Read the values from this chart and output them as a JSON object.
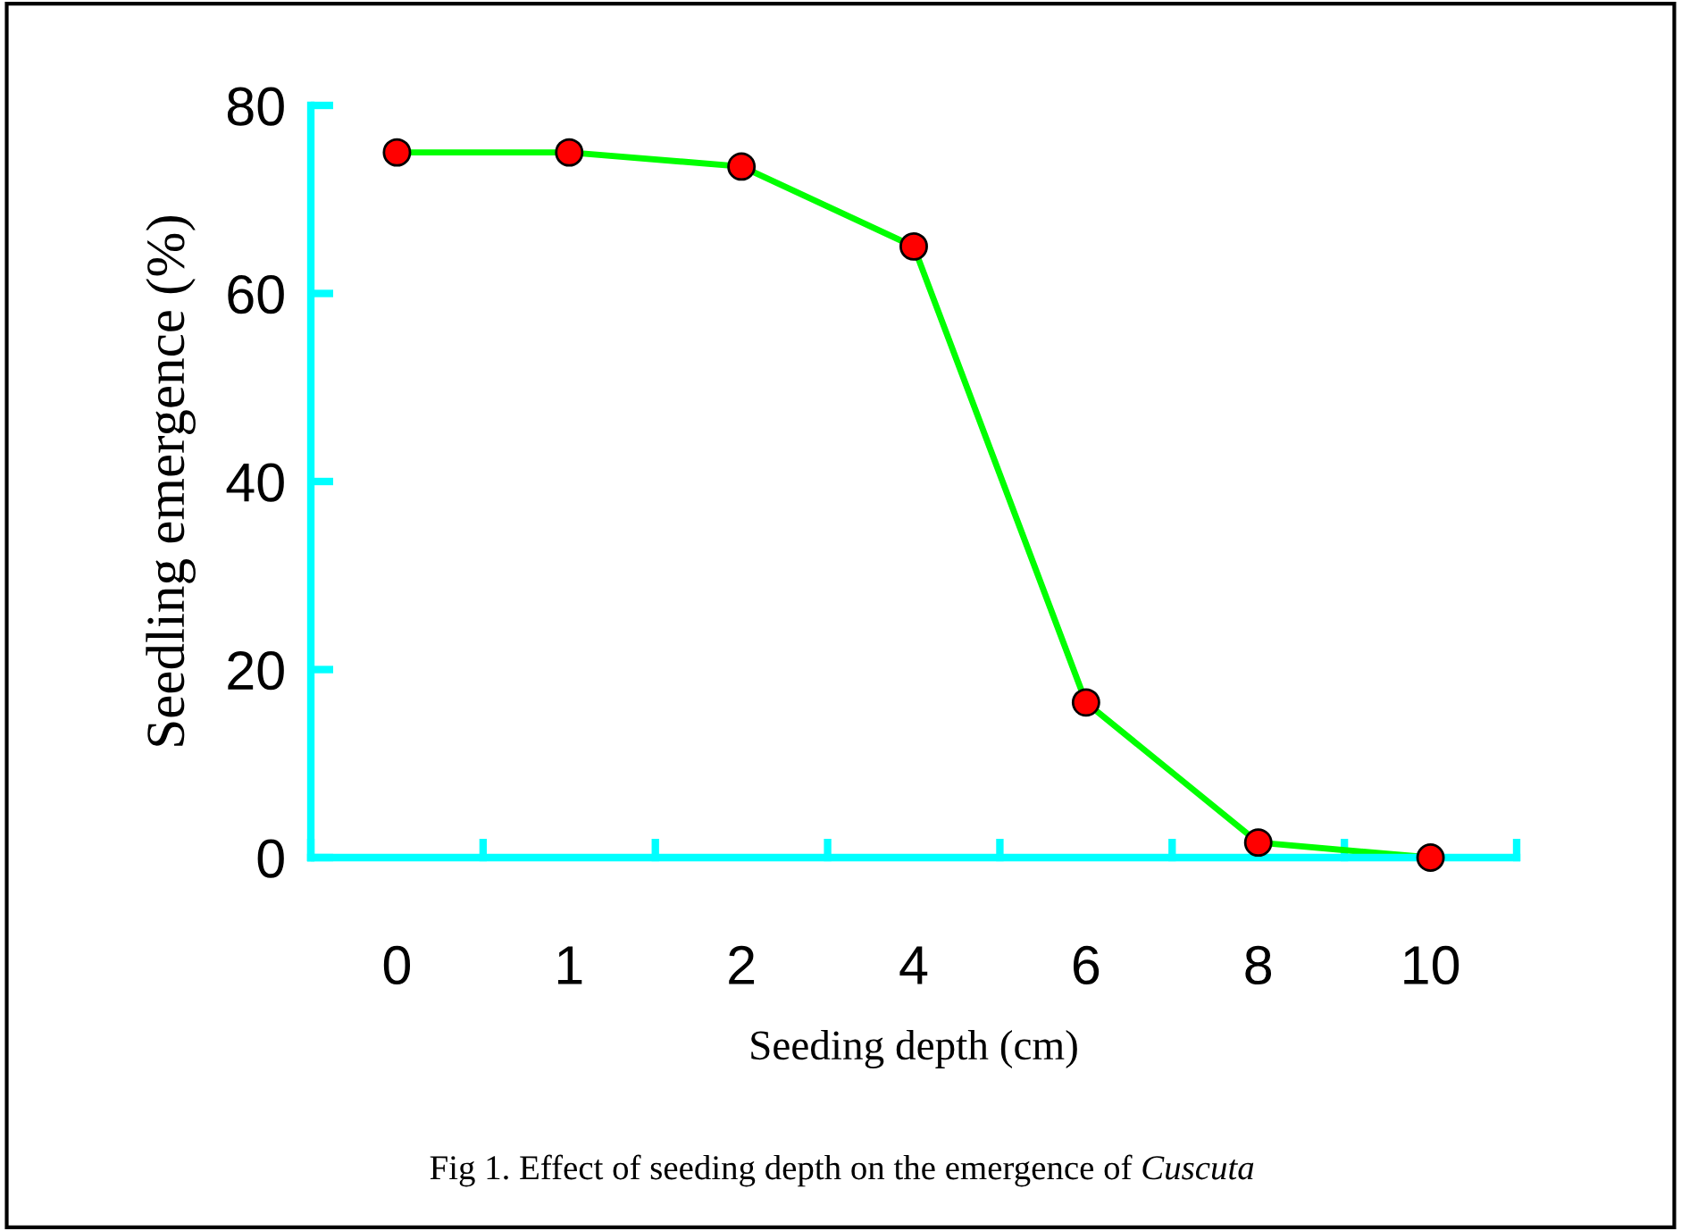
{
  "chart_data": {
    "type": "line",
    "xlabel": "Seeding depth (cm)",
    "ylabel": "Seedling emergence (%)",
    "annotations": [
      "Fig 1. Effect of seeding depth on the emergence of Cuscuta"
    ],
    "categories": [
      "0",
      "1",
      "2",
      "4",
      "6",
      "8",
      "10"
    ],
    "series": [
      {
        "color": "#00ff00",
        "values": [
          75,
          75,
          73.5,
          65,
          16.5,
          1.6,
          0
        ]
      }
    ],
    "marker": "circle",
    "ylim": [
      0,
      80
    ],
    "yticks": [
      0,
      20,
      40,
      60,
      80
    ],
    "grid": false,
    "legend": false
  }
}
